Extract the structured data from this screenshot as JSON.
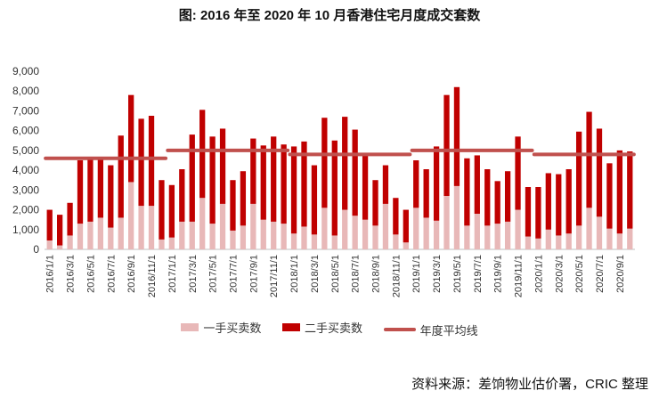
{
  "title": "图: 2016 年至 2020 年 10 月香港住宅月度成交套数",
  "source": "资料来源：差饷物业估价署，CRIC 整理",
  "colors": {
    "primary": "#e8b8b8",
    "secondary": "#c00000",
    "average": "#c0504d"
  },
  "legend": [
    {
      "key": "primary",
      "label": "一手买卖数"
    },
    {
      "key": "secondary",
      "label": "二手买卖数"
    },
    {
      "key": "average",
      "label": "年度平均线"
    }
  ],
  "chart_data": {
    "type": "bar",
    "stacked": true,
    "title": "图: 2016 年至 2020 年 10 月香港住宅月度成交套数",
    "ylim": [
      0,
      9000
    ],
    "yticks": [
      0,
      1000,
      2000,
      3000,
      4000,
      5000,
      6000,
      7000,
      8000,
      9000
    ],
    "grid": false,
    "legend_position": "bottom",
    "categories": [
      "2016/1/1",
      "2016/2/1",
      "2016/3/1",
      "2016/4/1",
      "2016/5/1",
      "2016/6/1",
      "2016/7/1",
      "2016/8/1",
      "2016/9/1",
      "2016/10/1",
      "2016/11/1",
      "2016/12/1",
      "2017/1/1",
      "2017/2/1",
      "2017/3/1",
      "2017/4/1",
      "2017/5/1",
      "2017/6/1",
      "2017/7/1",
      "2017/8/1",
      "2017/9/1",
      "2017/10/1",
      "2017/11/1",
      "2017/12/1",
      "2018/1/1",
      "2018/2/1",
      "2018/3/1",
      "2018/4/1",
      "2018/5/1",
      "2018/6/1",
      "2018/7/1",
      "2018/8/1",
      "2018/9/1",
      "2018/10/1",
      "2018/11/1",
      "2018/12/1",
      "2019/1/1",
      "2019/2/1",
      "2019/3/1",
      "2019/4/1",
      "2019/5/1",
      "2019/6/1",
      "2019/7/1",
      "2019/8/1",
      "2019/9/1",
      "2019/10/1",
      "2019/11/1",
      "2019/12/1",
      "2020/1/1",
      "2020/2/1",
      "2020/3/1",
      "2020/4/1",
      "2020/5/1",
      "2020/6/1",
      "2020/7/1",
      "2020/8/1",
      "2020/9/1",
      "2020/10/1"
    ],
    "tick_labels": [
      "2016/1/1",
      "2016/3/1",
      "2016/5/1",
      "2016/7/1",
      "2016/9/1",
      "2016/11/1",
      "2017/1/1",
      "2017/3/1",
      "2017/5/1",
      "2017/7/1",
      "2017/9/1",
      "2017/11/1",
      "2018/1/1",
      "2018/3/1",
      "2018/5/1",
      "2018/7/1",
      "2018/9/1",
      "2018/11/1",
      "2019/1/1",
      "2019/3/1",
      "2019/5/1",
      "2019/7/1",
      "2019/9/1",
      "2019/11/1",
      "2020/1/1",
      "2020/3/1",
      "2020/5/1",
      "2020/7/1",
      "2020/9/1"
    ],
    "series": [
      {
        "name": "一手买卖数",
        "values": [
          450,
          200,
          700,
          1300,
          1400,
          1600,
          1100,
          1600,
          3400,
          2200,
          2200,
          500,
          600,
          1400,
          1400,
          2600,
          1300,
          2300,
          950,
          1200,
          2300,
          1500,
          1400,
          1300,
          800,
          1150,
          750,
          2100,
          700,
          2000,
          1700,
          1500,
          1200,
          2300,
          750,
          350,
          2100,
          1600,
          1450,
          2700,
          3200,
          1200,
          1800,
          1200,
          1300,
          1400,
          2000,
          650,
          550,
          1000,
          700,
          800,
          1200,
          2100,
          1650,
          1050,
          800,
          1050
        ]
      },
      {
        "name": "二手买卖数",
        "values": [
          1550,
          1550,
          1650,
          3200,
          3200,
          2950,
          3150,
          4150,
          4400,
          4400,
          4550,
          3000,
          2650,
          2650,
          4400,
          4450,
          4400,
          3800,
          2550,
          2750,
          3300,
          3750,
          4300,
          4000,
          4400,
          4300,
          3500,
          4550,
          4800,
          4700,
          4350,
          3250,
          2300,
          1950,
          1850,
          1650,
          2400,
          2450,
          3750,
          5100,
          5000,
          3400,
          2950,
          2850,
          2150,
          2550,
          3700,
          2500,
          2600,
          2850,
          3100,
          3250,
          4750,
          4850,
          4450,
          3300,
          4200,
          3900
        ]
      }
    ],
    "averages": [
      {
        "year": "2016",
        "start": 0,
        "end": 11,
        "value": 4600
      },
      {
        "year": "2017",
        "start": 12,
        "end": 23,
        "value": 5000
      },
      {
        "year": "2018",
        "start": 24,
        "end": 35,
        "value": 4800
      },
      {
        "year": "2019",
        "start": 36,
        "end": 47,
        "value": 5000
      },
      {
        "year": "2020",
        "start": 48,
        "end": 57,
        "value": 4800
      }
    ]
  }
}
